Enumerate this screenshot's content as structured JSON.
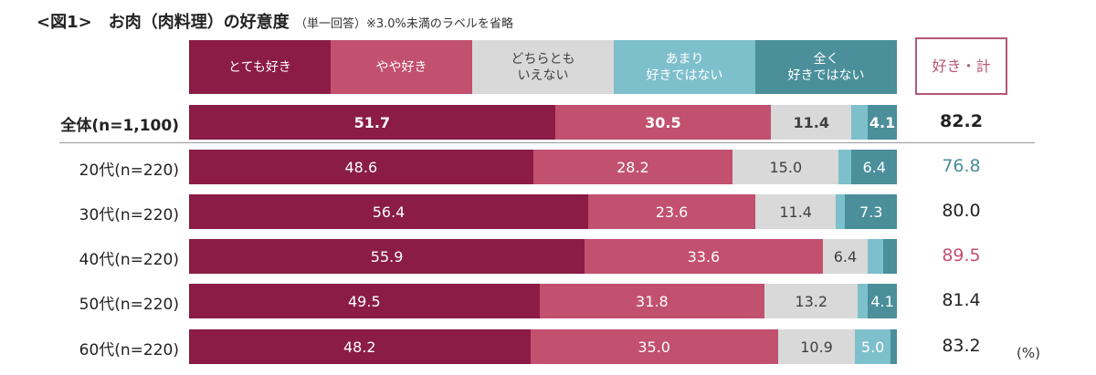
{
  "chart_data": {
    "type": "stacked-bar",
    "title": "<図1>　お肉（肉料理）の好意度",
    "subtitle": "（単一回答）※3.0%未満のラベルを省略",
    "unit": "(%)",
    "categories": [
      "全体(n=1,100)",
      "20代(n=220)",
      "30代(n=220)",
      "40代(n=220)",
      "50代(n=220)",
      "60代(n=220)"
    ],
    "xlim": [
      0,
      100
    ],
    "series": [
      {
        "name": "とても好き",
        "color": "#8a1c45",
        "label_color": "#ffffff",
        "values": [
          51.7,
          48.6,
          56.4,
          55.9,
          49.5,
          48.2
        ],
        "value_labels": [
          "51.7",
          "48.6",
          "56.4",
          "55.9",
          "49.5",
          "48.2"
        ]
      },
      {
        "name": "やや好き",
        "color": "#c2506f",
        "label_color": "#ffffff",
        "values": [
          30.5,
          28.2,
          23.6,
          33.6,
          31.8,
          35.0
        ],
        "value_labels": [
          "30.5",
          "28.2",
          "23.6",
          "33.6",
          "31.8",
          "35.0"
        ]
      },
      {
        "name": "どちらとも\nいえない",
        "color": "#d9d9d9",
        "label_color": "#404040",
        "values": [
          11.4,
          15.0,
          11.4,
          6.4,
          13.2,
          10.9
        ],
        "value_labels": [
          "11.4",
          "15.0",
          "11.4",
          "6.4",
          "13.2",
          "10.9"
        ]
      },
      {
        "name": "あまり\n好きではない",
        "color": "#7ebfcc",
        "label_color": "#ffffff",
        "values": [
          2.3,
          1.8,
          1.3,
          2.2,
          1.4,
          5.0
        ],
        "value_labels": [
          null,
          null,
          null,
          null,
          null,
          "5.0"
        ]
      },
      {
        "name": "全く\n好きではない",
        "color": "#4a8f9a",
        "label_color": "#ffffff",
        "values": [
          4.1,
          6.4,
          7.3,
          1.9,
          4.1,
          0.9
        ],
        "value_labels": [
          "4.1",
          "6.4",
          "7.3",
          null,
          "4.1",
          null
        ]
      }
    ],
    "totals": {
      "name": "好き・計",
      "color": "#b5577a",
      "values": [
        82.2,
        76.8,
        80.0,
        89.5,
        81.4,
        83.2
      ],
      "value_labels": [
        "82.2",
        "76.8",
        "80.0",
        "89.5",
        "81.4",
        "83.2"
      ],
      "colors": [
        "#222222",
        "#4a8f9a",
        "#222222",
        "#c2506f",
        "#222222",
        "#222222"
      ]
    }
  }
}
